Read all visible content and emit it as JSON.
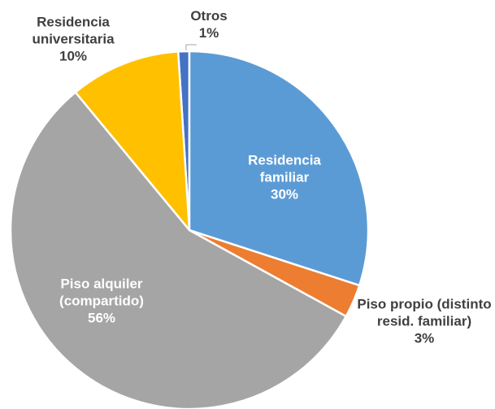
{
  "chart_data": {
    "type": "pie",
    "categories": [
      "Residencia familiar",
      "Piso propio (distinto resid. familiar)",
      "Piso alquiler (compartido)",
      "Residencia universitaria",
      "Otros"
    ],
    "values": [
      30,
      3,
      56,
      10,
      1
    ],
    "value_labels": [
      "30%",
      "3%",
      "56%",
      "10%",
      "1%"
    ],
    "colors": [
      "#5b9bd5",
      "#ed7d31",
      "#a5a5a5",
      "#ffc000",
      "#4472c4"
    ]
  }
}
